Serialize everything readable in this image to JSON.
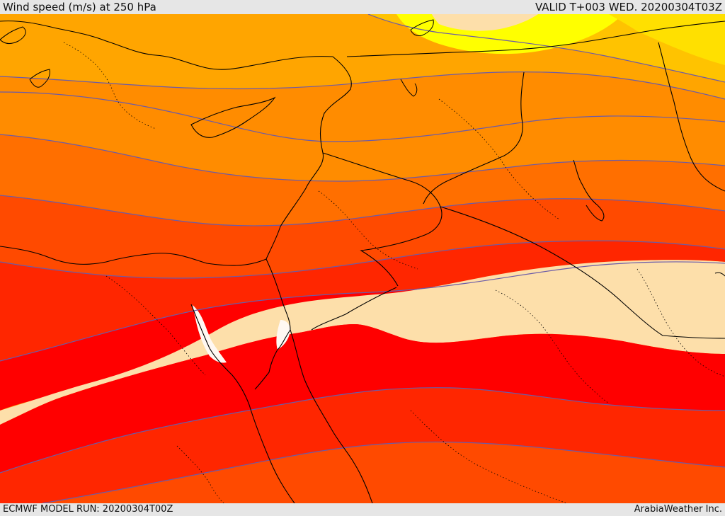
{
  "header": {
    "title": "Wind speed (m/s) at 250 hPa",
    "valid": "VALID T+003 WED. 20200304T03Z"
  },
  "footer": {
    "model_run": "ECMWF MODEL RUN: 20200304T00Z",
    "credit": "ArabiaWeather Inc."
  },
  "colors": {
    "background": "#e6e6e6",
    "very_light": "#FFF8F2",
    "light_tan": "#FDDFAA",
    "yellow": "#FFFF00",
    "yellow_orange": "#FFE000",
    "gold": "#FFC300",
    "orange_light": "#FFA500",
    "orange": "#FF8C00",
    "orange_dark": "#FF6F00",
    "red_orange": "#FF4A00",
    "red_light": "#FF2600",
    "red": "#FF0000",
    "contour": "#6B5BA8",
    "coastline": "#000000"
  }
}
